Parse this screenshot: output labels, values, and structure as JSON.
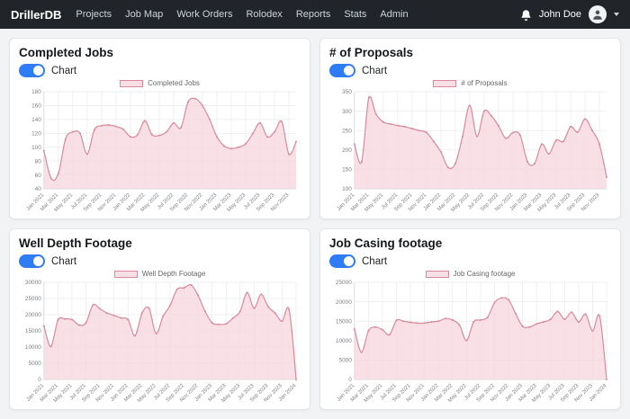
{
  "colors": {
    "accent_blue": "#2e7cf6",
    "line_pink": "#d9899b",
    "fill_pink": "rgba(246,213,221,0.75)",
    "navbar_bg": "#212529"
  },
  "navbar": {
    "brand": "DrillerDB",
    "items": [
      "Projects",
      "Job Map",
      "Work Orders",
      "Rolodex",
      "Reports",
      "Stats",
      "Admin"
    ],
    "user_name": "John Doe"
  },
  "cards": [
    {
      "title": "Completed Jobs",
      "toggle_label": "Chart",
      "toggle_on": true,
      "legend_label": "Completed Jobs"
    },
    {
      "title": "# of Proposals",
      "toggle_label": "Chart",
      "toggle_on": true,
      "legend_label": "# of Proposals"
    },
    {
      "title": "Well Depth Footage",
      "toggle_label": "Chart",
      "toggle_on": true,
      "legend_label": "Well Depth Footage"
    },
    {
      "title": "Job Casing footage",
      "toggle_label": "Chart",
      "toggle_on": true,
      "legend_label": "Job Casing footage"
    }
  ],
  "chart_data": [
    {
      "type": "area",
      "title": "Completed Jobs",
      "legend": "Completed Jobs",
      "ylim": [
        40,
        180
      ],
      "ystep": 20,
      "grid": true,
      "legend_position": "top-center",
      "line_color": "#d9899b",
      "fill_color": "rgba(246,213,221,0.75)",
      "x": [
        "Jan 2021",
        "Feb 2021",
        "Mar 2021",
        "Apr 2021",
        "May 2021",
        "Jun 2021",
        "Jul 2021",
        "Aug 2021",
        "Sep 2021",
        "Oct 2021",
        "Nov 2021",
        "Dec 2021",
        "Jan 2022",
        "Feb 2022",
        "Mar 2022",
        "Apr 2022",
        "May 2022",
        "Jun 2022",
        "Jul 2022",
        "Aug 2022",
        "Sep 2022",
        "Oct 2022",
        "Nov 2022",
        "Dec 2022",
        "Jan 2023",
        "Feb 2023",
        "Mar 2023",
        "Apr 2023",
        "May 2023",
        "Jun 2023",
        "Jul 2023",
        "Aug 2023",
        "Sep 2023",
        "Oct 2023",
        "Nov 2023",
        "Dec 2023"
      ],
      "values": [
        95,
        55,
        62,
        112,
        122,
        120,
        90,
        125,
        131,
        132,
        130,
        126,
        115,
        118,
        138,
        118,
        117,
        122,
        135,
        128,
        165,
        170,
        160,
        140,
        115,
        102,
        98,
        100,
        105,
        120,
        135,
        115,
        122,
        137,
        90,
        108
      ]
    },
    {
      "type": "area",
      "title": "# of Proposals",
      "legend": "# of Proposals",
      "ylim": [
        100,
        350
      ],
      "ystep": 50,
      "grid": true,
      "legend_position": "top-center",
      "line_color": "#d9899b",
      "fill_color": "rgba(246,213,221,0.75)",
      "x": [
        "Jan 2021",
        "Feb 2021",
        "Mar 2021",
        "Apr 2021",
        "May 2021",
        "Jun 2021",
        "Jul 2021",
        "Aug 2021",
        "Sep 2021",
        "Oct 2021",
        "Nov 2021",
        "Dec 2021",
        "Jan 2022",
        "Feb 2022",
        "Mar 2022",
        "Apr 2022",
        "May 2022",
        "Jun 2022",
        "Jul 2022",
        "Aug 2022",
        "Sep 2022",
        "Oct 2022",
        "Nov 2022",
        "Dec 2022",
        "Jan 2023",
        "Feb 2023",
        "Mar 2023",
        "Apr 2023",
        "May 2023",
        "Jun 2023",
        "Jul 2023",
        "Aug 2023",
        "Sep 2023",
        "Oct 2023",
        "Nov 2023",
        "Dec 2023"
      ],
      "values": [
        215,
        170,
        335,
        292,
        272,
        267,
        263,
        260,
        255,
        250,
        245,
        222,
        195,
        155,
        165,
        235,
        315,
        235,
        300,
        288,
        262,
        230,
        245,
        238,
        170,
        165,
        215,
        190,
        225,
        222,
        260,
        246,
        280,
        250,
        215,
        130
      ]
    },
    {
      "type": "area",
      "title": "Well Depth Footage",
      "legend": "Well Depth Footage",
      "ylim": [
        0,
        30000
      ],
      "ystep": 5000,
      "grid": true,
      "legend_position": "top-center",
      "line_color": "#d9899b",
      "fill_color": "rgba(246,213,221,0.75)",
      "x": [
        "Jan 2021",
        "Feb 2021",
        "Mar 2021",
        "Apr 2021",
        "May 2021",
        "Jun 2021",
        "Jul 2021",
        "Aug 2021",
        "Sep 2021",
        "Oct 2021",
        "Nov 2021",
        "Dec 2021",
        "Jan 2022",
        "Feb 2022",
        "Mar 2022",
        "Apr 2022",
        "May 2022",
        "Jun 2022",
        "Jul 2022",
        "Aug 2022",
        "Sep 2022",
        "Oct 2022",
        "Nov 2022",
        "Dec 2022",
        "Jan 2023",
        "Feb 2023",
        "Mar 2023",
        "Apr 2023",
        "May 2023",
        "Jun 2023",
        "Jul 2023",
        "Aug 2023",
        "Sep 2023",
        "Oct 2023",
        "Nov 2023",
        "Dec 2023",
        "Jan 2024"
      ],
      "values": [
        16500,
        10200,
        18400,
        18700,
        18500,
        16800,
        17500,
        23000,
        21800,
        20500,
        19800,
        19000,
        18500,
        13500,
        20500,
        22000,
        14200,
        19500,
        22800,
        27800,
        28300,
        29200,
        26000,
        21000,
        17500,
        17000,
        17200,
        19000,
        21000,
        26800,
        22000,
        26300,
        22500,
        20500,
        18000,
        21500,
        0
      ]
    },
    {
      "type": "area",
      "title": "Job Casing footage",
      "legend": "Job Casing footage",
      "ylim": [
        0,
        25000
      ],
      "ystep": 5000,
      "grid": true,
      "legend_position": "top-center",
      "line_color": "#d9899b",
      "fill_color": "rgba(246,213,221,0.75)",
      "x": [
        "Jan 2021",
        "Feb 2021",
        "Mar 2021",
        "Apr 2021",
        "May 2021",
        "Jun 2021",
        "Jul 2021",
        "Aug 2021",
        "Sep 2021",
        "Oct 2021",
        "Nov 2021",
        "Dec 2021",
        "Jan 2022",
        "Feb 2022",
        "Mar 2022",
        "Apr 2022",
        "May 2022",
        "Jun 2022",
        "Jul 2022",
        "Aug 2022",
        "Sep 2022",
        "Oct 2022",
        "Nov 2022",
        "Dec 2022",
        "Jan 2023",
        "Feb 2023",
        "Mar 2023",
        "Apr 2023",
        "May 2023",
        "Jun 2023",
        "Jul 2023",
        "Aug 2023",
        "Sep 2023",
        "Oct 2023",
        "Nov 2023",
        "Dec 2023",
        "Jan 2024"
      ],
      "values": [
        13000,
        7000,
        12500,
        13500,
        12800,
        11500,
        15200,
        15000,
        14700,
        14500,
        14500,
        14800,
        15000,
        15700,
        15300,
        14000,
        10000,
        14800,
        15300,
        16000,
        19800,
        21000,
        20500,
        17000,
        13700,
        13500,
        14300,
        14800,
        15500,
        17500,
        15500,
        17300,
        14800,
        16800,
        12500,
        16300,
        0
      ]
    }
  ]
}
